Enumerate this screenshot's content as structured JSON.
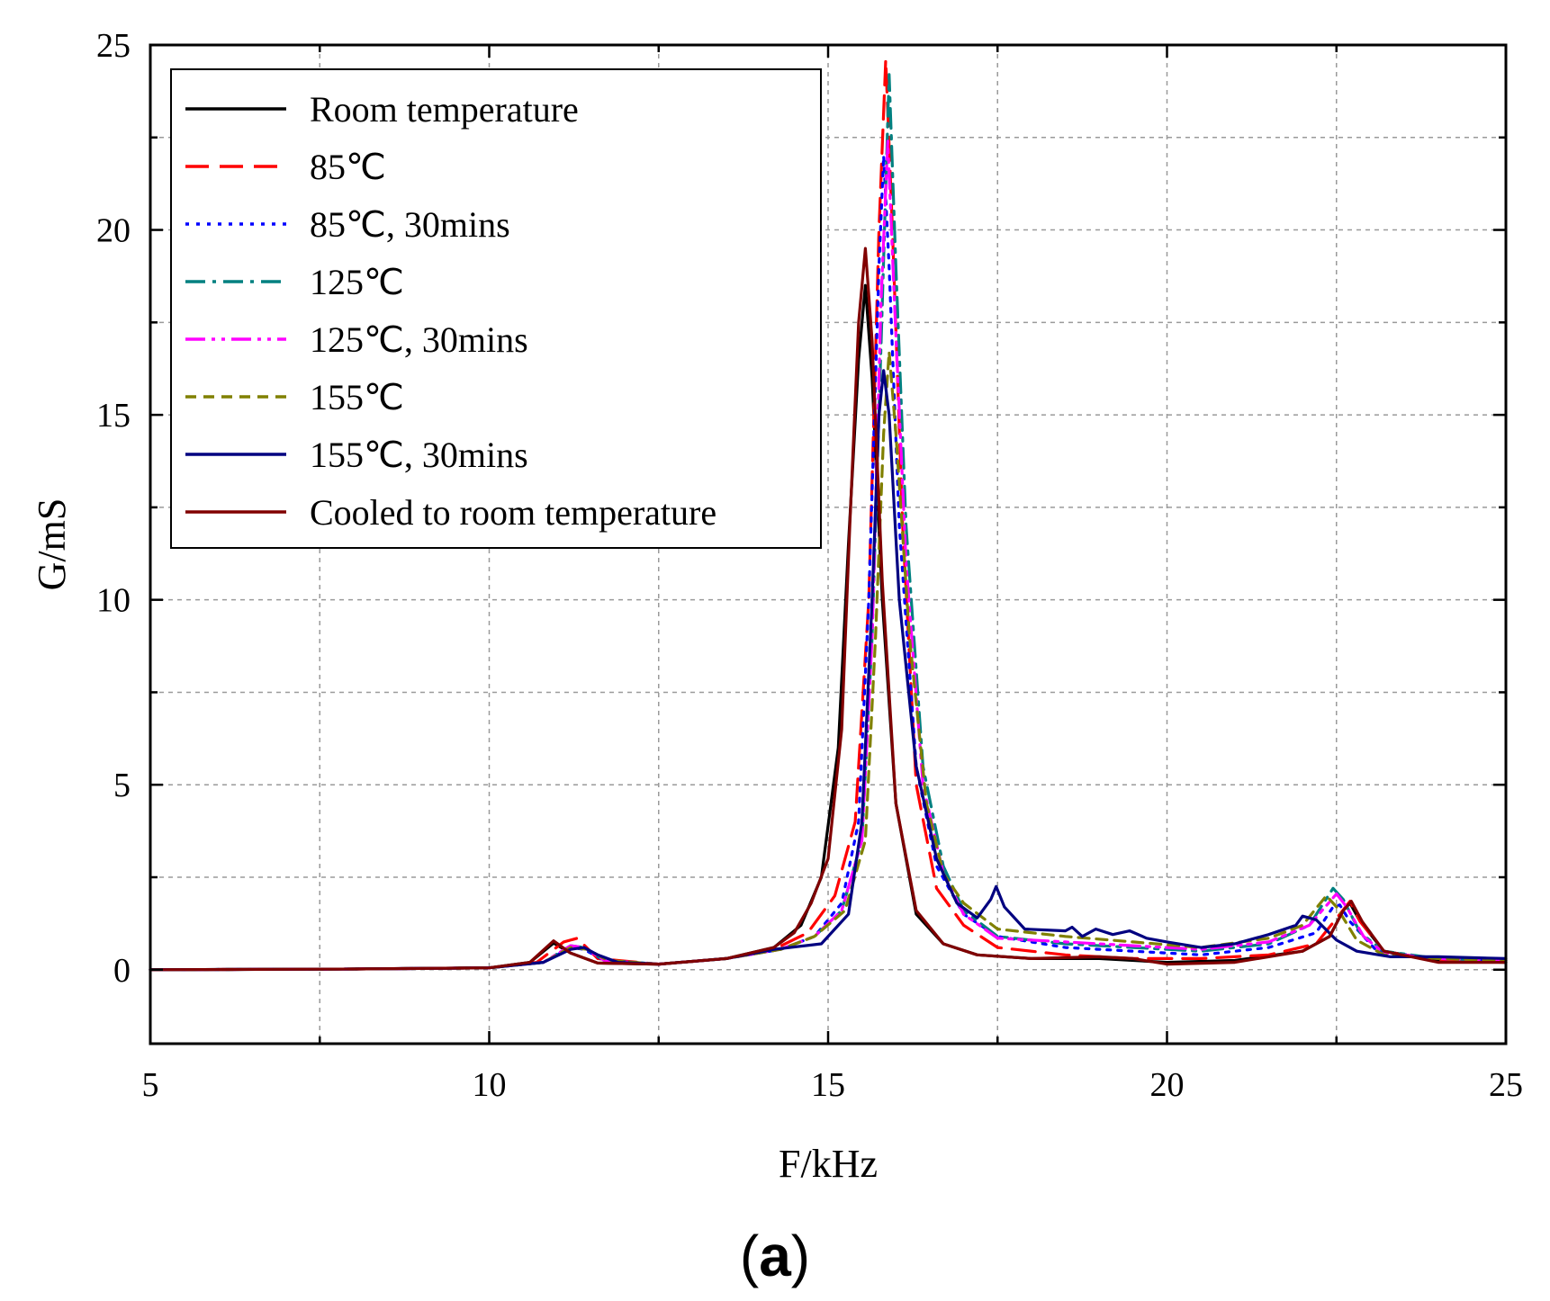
{
  "chart_data": {
    "type": "line",
    "title": "",
    "panel_label": "(a)",
    "panel_label_letter": "a",
    "xlabel": "F/kHz",
    "ylabel": "G/mS",
    "xlim": [
      5,
      25
    ],
    "ylim": [
      -2,
      25
    ],
    "xticks": [
      5,
      10,
      15,
      20,
      25
    ],
    "yticks": [
      0,
      5,
      10,
      15,
      20,
      25
    ],
    "grid": true,
    "legend_position": "top-left",
    "series": [
      {
        "name": "Room temperature",
        "color": "#000000",
        "dash": "solid",
        "points": [
          [
            5,
            0
          ],
          [
            8,
            0.02
          ],
          [
            10,
            0.05
          ],
          [
            10.6,
            0.2
          ],
          [
            10.95,
            0.72
          ],
          [
            11.2,
            0.45
          ],
          [
            11.6,
            0.18
          ],
          [
            12.5,
            0.15
          ],
          [
            13.5,
            0.3
          ],
          [
            14.2,
            0.6
          ],
          [
            14.6,
            1.2
          ],
          [
            14.9,
            2.5
          ],
          [
            15.15,
            6.0
          ],
          [
            15.3,
            11.5
          ],
          [
            15.45,
            16.5
          ],
          [
            15.55,
            18.5
          ],
          [
            15.65,
            16.0
          ],
          [
            15.8,
            10.0
          ],
          [
            16.0,
            4.5
          ],
          [
            16.3,
            1.5
          ],
          [
            16.7,
            0.7
          ],
          [
            17.2,
            0.4
          ],
          [
            18,
            0.3
          ],
          [
            19,
            0.3
          ],
          [
            20,
            0.2
          ],
          [
            21,
            0.25
          ],
          [
            22,
            0.5
          ],
          [
            22.4,
            0.9
          ],
          [
            22.6,
            1.6
          ],
          [
            22.7,
            1.8
          ],
          [
            22.85,
            1.3
          ],
          [
            23.2,
            0.5
          ],
          [
            24,
            0.25
          ],
          [
            25,
            0.2
          ]
        ]
      },
      {
        "name": "85℃",
        "color": "#ff0000",
        "dash": "long-dash",
        "points": [
          [
            5,
            0
          ],
          [
            8,
            0.02
          ],
          [
            10,
            0.05
          ],
          [
            10.7,
            0.2
          ],
          [
            11.1,
            0.75
          ],
          [
            11.3,
            0.85
          ],
          [
            11.6,
            0.3
          ],
          [
            12.5,
            0.15
          ],
          [
            13.5,
            0.3
          ],
          [
            14.2,
            0.55
          ],
          [
            14.7,
            1.0
          ],
          [
            15.1,
            2.0
          ],
          [
            15.4,
            4.0
          ],
          [
            15.6,
            10.0
          ],
          [
            15.75,
            20.0
          ],
          [
            15.85,
            24.6
          ],
          [
            15.95,
            20.0
          ],
          [
            16.1,
            12.0
          ],
          [
            16.3,
            5.0
          ],
          [
            16.6,
            2.2
          ],
          [
            17,
            1.2
          ],
          [
            17.5,
            0.6
          ],
          [
            18.5,
            0.4
          ],
          [
            19.5,
            0.3
          ],
          [
            20.5,
            0.3
          ],
          [
            21.5,
            0.4
          ],
          [
            22.2,
            0.7
          ],
          [
            22.55,
            1.5
          ],
          [
            22.7,
            1.85
          ],
          [
            22.85,
            1.3
          ],
          [
            23.2,
            0.5
          ],
          [
            24,
            0.25
          ],
          [
            25,
            0.2
          ]
        ]
      },
      {
        "name": "85℃, 30mins",
        "color": "#0000ff",
        "dash": "dot",
        "points": [
          [
            5,
            0
          ],
          [
            8,
            0.02
          ],
          [
            10,
            0.05
          ],
          [
            10.8,
            0.2
          ],
          [
            11.2,
            0.6
          ],
          [
            11.4,
            0.55
          ],
          [
            11.7,
            0.25
          ],
          [
            12.5,
            0.15
          ],
          [
            13.5,
            0.3
          ],
          [
            14.3,
            0.55
          ],
          [
            14.8,
            0.9
          ],
          [
            15.2,
            1.8
          ],
          [
            15.45,
            4.0
          ],
          [
            15.6,
            10.0
          ],
          [
            15.75,
            19.0
          ],
          [
            15.82,
            22.0
          ],
          [
            15.9,
            19.0
          ],
          [
            16.05,
            12.0
          ],
          [
            16.3,
            5.5
          ],
          [
            16.6,
            2.8
          ],
          [
            17,
            1.5
          ],
          [
            17.5,
            0.9
          ],
          [
            18.5,
            0.6
          ],
          [
            19.5,
            0.5
          ],
          [
            20.5,
            0.4
          ],
          [
            21.5,
            0.6
          ],
          [
            22.2,
            1.0
          ],
          [
            22.45,
            1.7
          ],
          [
            22.55,
            1.75
          ],
          [
            22.7,
            1.3
          ],
          [
            23.1,
            0.5
          ],
          [
            24,
            0.3
          ],
          [
            25,
            0.25
          ]
        ]
      },
      {
        "name": "125℃",
        "color": "#008080",
        "dash": "dash-dot",
        "points": [
          [
            5,
            0
          ],
          [
            8,
            0.02
          ],
          [
            10,
            0.05
          ],
          [
            10.8,
            0.2
          ],
          [
            11.2,
            0.65
          ],
          [
            11.4,
            0.6
          ],
          [
            11.7,
            0.25
          ],
          [
            12.5,
            0.15
          ],
          [
            13.5,
            0.3
          ],
          [
            14.3,
            0.55
          ],
          [
            14.8,
            0.9
          ],
          [
            15.2,
            1.6
          ],
          [
            15.5,
            3.5
          ],
          [
            15.65,
            9.0
          ],
          [
            15.8,
            18.0
          ],
          [
            15.9,
            24.2
          ],
          [
            16.0,
            19.0
          ],
          [
            16.15,
            12.0
          ],
          [
            16.4,
            5.5
          ],
          [
            16.7,
            2.8
          ],
          [
            17,
            1.6
          ],
          [
            17.5,
            0.9
          ],
          [
            18.5,
            0.7
          ],
          [
            19.5,
            0.6
          ],
          [
            20.5,
            0.5
          ],
          [
            21.5,
            0.7
          ],
          [
            22.1,
            1.2
          ],
          [
            22.45,
            2.2
          ],
          [
            22.6,
            1.9
          ],
          [
            22.85,
            1.0
          ],
          [
            23.2,
            0.5
          ],
          [
            24,
            0.3
          ],
          [
            25,
            0.25
          ]
        ]
      },
      {
        "name": "125℃, 30mins",
        "color": "#ff00ff",
        "dash": "dash-dot-dot",
        "points": [
          [
            5,
            0
          ],
          [
            8,
            0.02
          ],
          [
            10,
            0.05
          ],
          [
            10.8,
            0.2
          ],
          [
            11.2,
            0.65
          ],
          [
            11.4,
            0.6
          ],
          [
            11.7,
            0.25
          ],
          [
            12.5,
            0.15
          ],
          [
            13.5,
            0.3
          ],
          [
            14.3,
            0.55
          ],
          [
            14.8,
            0.9
          ],
          [
            15.2,
            1.6
          ],
          [
            15.5,
            3.5
          ],
          [
            15.65,
            9.0
          ],
          [
            15.78,
            18.0
          ],
          [
            15.88,
            22.4
          ],
          [
            15.98,
            18.0
          ],
          [
            16.15,
            11.0
          ],
          [
            16.4,
            5.0
          ],
          [
            16.7,
            2.6
          ],
          [
            17,
            1.5
          ],
          [
            17.5,
            0.85
          ],
          [
            18.5,
            0.75
          ],
          [
            19.5,
            0.65
          ],
          [
            20.5,
            0.55
          ],
          [
            21.5,
            0.75
          ],
          [
            22.1,
            1.2
          ],
          [
            22.5,
            2.05
          ],
          [
            22.65,
            1.7
          ],
          [
            22.9,
            0.9
          ],
          [
            23.2,
            0.45
          ],
          [
            24,
            0.3
          ],
          [
            25,
            0.25
          ]
        ]
      },
      {
        "name": "155℃",
        "color": "#808000",
        "dash": "short-dash",
        "points": [
          [
            5,
            0
          ],
          [
            8,
            0.02
          ],
          [
            10,
            0.05
          ],
          [
            10.8,
            0.2
          ],
          [
            11.2,
            0.6
          ],
          [
            11.45,
            0.55
          ],
          [
            11.75,
            0.25
          ],
          [
            12.5,
            0.15
          ],
          [
            13.5,
            0.3
          ],
          [
            14.3,
            0.55
          ],
          [
            14.8,
            0.9
          ],
          [
            15.25,
            1.6
          ],
          [
            15.55,
            3.5
          ],
          [
            15.7,
            9.0
          ],
          [
            15.82,
            14.5
          ],
          [
            15.9,
            16.7
          ],
          [
            16.0,
            14.5
          ],
          [
            16.2,
            9.0
          ],
          [
            16.45,
            4.5
          ],
          [
            16.7,
            2.6
          ],
          [
            17,
            1.8
          ],
          [
            17.5,
            1.1
          ],
          [
            18.5,
            0.9
          ],
          [
            19.5,
            0.75
          ],
          [
            20.5,
            0.6
          ],
          [
            21.5,
            0.85
          ],
          [
            22.0,
            1.2
          ],
          [
            22.35,
            2.0
          ],
          [
            22.5,
            1.7
          ],
          [
            22.8,
            0.8
          ],
          [
            23.2,
            0.4
          ],
          [
            24,
            0.3
          ],
          [
            25,
            0.25
          ]
        ]
      },
      {
        "name": "155℃, 30mins",
        "color": "#000080",
        "dash": "solid",
        "points": [
          [
            5,
            0
          ],
          [
            8,
            0.02
          ],
          [
            10,
            0.05
          ],
          [
            10.8,
            0.2
          ],
          [
            11.2,
            0.55
          ],
          [
            11.4,
            0.6
          ],
          [
            11.6,
            0.4
          ],
          [
            11.9,
            0.2
          ],
          [
            12.5,
            0.15
          ],
          [
            13.5,
            0.3
          ],
          [
            14.2,
            0.55
          ],
          [
            14.9,
            0.7
          ],
          [
            15.3,
            1.5
          ],
          [
            15.5,
            4.0
          ],
          [
            15.65,
            10.0
          ],
          [
            15.75,
            15.0
          ],
          [
            15.82,
            16.2
          ],
          [
            15.9,
            15.0
          ],
          [
            16.05,
            10.0
          ],
          [
            16.3,
            5.5
          ],
          [
            16.6,
            3.0
          ],
          [
            16.9,
            1.8
          ],
          [
            17.2,
            1.4
          ],
          [
            17.4,
            1.9
          ],
          [
            17.48,
            2.25
          ],
          [
            17.6,
            1.7
          ],
          [
            17.9,
            1.1
          ],
          [
            18.5,
            1.05
          ],
          [
            18.6,
            1.15
          ],
          [
            18.75,
            0.9
          ],
          [
            18.95,
            1.1
          ],
          [
            19.2,
            0.95
          ],
          [
            19.45,
            1.05
          ],
          [
            19.7,
            0.85
          ],
          [
            20.0,
            0.75
          ],
          [
            20.5,
            0.6
          ],
          [
            21.0,
            0.7
          ],
          [
            21.5,
            0.95
          ],
          [
            21.9,
            1.2
          ],
          [
            22.0,
            1.45
          ],
          [
            22.2,
            1.35
          ],
          [
            22.5,
            0.8
          ],
          [
            22.8,
            0.5
          ],
          [
            23.3,
            0.35
          ],
          [
            24,
            0.35
          ],
          [
            25,
            0.3
          ]
        ]
      },
      {
        "name": "Cooled to room temperature",
        "color": "#800000",
        "dash": "solid",
        "points": [
          [
            5,
            0
          ],
          [
            8,
            0.02
          ],
          [
            10,
            0.05
          ],
          [
            10.6,
            0.2
          ],
          [
            10.95,
            0.78
          ],
          [
            11.2,
            0.45
          ],
          [
            11.6,
            0.18
          ],
          [
            12.5,
            0.15
          ],
          [
            13.5,
            0.3
          ],
          [
            14.2,
            0.6
          ],
          [
            14.5,
            1.0
          ],
          [
            14.75,
            1.8
          ],
          [
            15.0,
            3.0
          ],
          [
            15.2,
            6.5
          ],
          [
            15.32,
            12.0
          ],
          [
            15.45,
            17.5
          ],
          [
            15.55,
            19.5
          ],
          [
            15.65,
            17.0
          ],
          [
            15.8,
            10.5
          ],
          [
            16.0,
            4.5
          ],
          [
            16.3,
            1.6
          ],
          [
            16.7,
            0.7
          ],
          [
            17.2,
            0.4
          ],
          [
            18,
            0.3
          ],
          [
            19,
            0.35
          ],
          [
            19.5,
            0.3
          ],
          [
            20,
            0.15
          ],
          [
            21,
            0.2
          ],
          [
            22,
            0.5
          ],
          [
            22.4,
            0.9
          ],
          [
            22.6,
            1.6
          ],
          [
            22.72,
            1.85
          ],
          [
            22.88,
            1.3
          ],
          [
            23.2,
            0.5
          ],
          [
            24,
            0.2
          ],
          [
            25,
            0.2
          ]
        ]
      }
    ]
  }
}
